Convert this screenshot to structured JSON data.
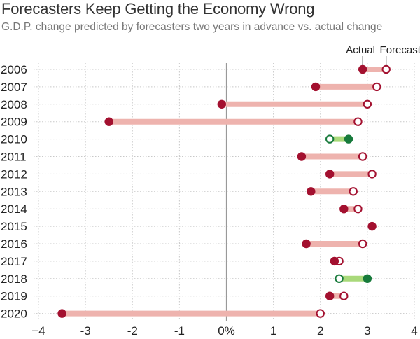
{
  "chart_data": {
    "type": "dumbbell",
    "title": "Forecasters Keep Getting the Economy Wrong",
    "subtitle": "G.D.P. change predicted by forecasters two years in advance vs. actual change",
    "xlim": [
      -4,
      4
    ],
    "x_ticks": [
      {
        "value": -4,
        "label": "−4"
      },
      {
        "value": -3,
        "label": "-3"
      },
      {
        "value": -2,
        "label": "-2"
      },
      {
        "value": -1,
        "label": "-1"
      },
      {
        "value": 0,
        "label": "0%"
      },
      {
        "value": 1,
        "label": "1"
      },
      {
        "value": 2,
        "label": "2"
      },
      {
        "value": 3,
        "label": "3"
      },
      {
        "value": 4,
        "label": "4"
      }
    ],
    "legend": {
      "actual": "Actual",
      "forecast": "Forecast"
    },
    "colors": {
      "overestimate_dot": "#a3102f",
      "overestimate_bar": "#eeb3ae",
      "underestimate_dot": "#177a3b",
      "underestimate_bar": "#a9d97a",
      "axis_zero": "#999999",
      "grid": "#c8c8c8"
    },
    "rows": [
      {
        "year": "2006",
        "actual": 2.9,
        "forecast": 3.4
      },
      {
        "year": "2007",
        "actual": 1.9,
        "forecast": 3.2
      },
      {
        "year": "2008",
        "actual": -0.1,
        "forecast": 3.0
      },
      {
        "year": "2009",
        "actual": -2.5,
        "forecast": 2.8
      },
      {
        "year": "2010",
        "actual": 2.6,
        "forecast": 2.2
      },
      {
        "year": "2011",
        "actual": 1.6,
        "forecast": 2.9
      },
      {
        "year": "2012",
        "actual": 2.2,
        "forecast": 3.1
      },
      {
        "year": "2013",
        "actual": 1.8,
        "forecast": 2.7
      },
      {
        "year": "2014",
        "actual": 2.5,
        "forecast": 2.8
      },
      {
        "year": "2015",
        "actual": 3.1,
        "forecast": 3.1
      },
      {
        "year": "2016",
        "actual": 1.7,
        "forecast": 2.9
      },
      {
        "year": "2017",
        "actual": 2.3,
        "forecast": 2.4
      },
      {
        "year": "2018",
        "actual": 3.0,
        "forecast": 2.4
      },
      {
        "year": "2019",
        "actual": 2.2,
        "forecast": 2.5
      },
      {
        "year": "2020",
        "actual": -3.5,
        "forecast": 2.0
      }
    ]
  }
}
